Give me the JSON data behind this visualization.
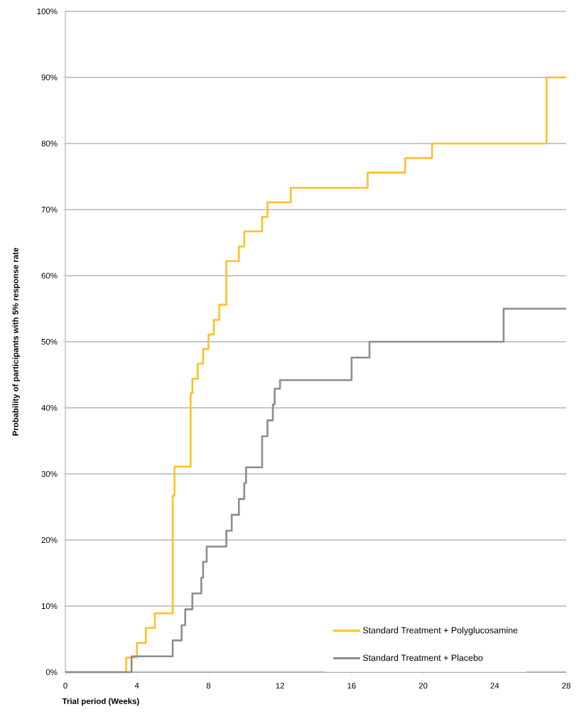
{
  "chart_data": {
    "type": "step",
    "xlabel": "Trial period (Weeks)",
    "ylabel": "Probability of participants with  5% response rate",
    "xlim": [
      0,
      28
    ],
    "xticks": [
      0,
      4,
      8,
      12,
      16,
      20,
      24,
      28
    ],
    "ylim": [
      0,
      100
    ],
    "yticks": [
      {
        "value": 0,
        "label": "0%"
      },
      {
        "value": 10,
        "label": "10%"
      },
      {
        "value": 20,
        "label": "20%"
      },
      {
        "value": 30,
        "label": "30%"
      },
      {
        "value": 40,
        "label": "40%"
      },
      {
        "value": 50,
        "label": "50%"
      },
      {
        "value": 60,
        "label": "60%"
      },
      {
        "value": 70,
        "label": "70%"
      },
      {
        "value": 80,
        "label": "80%"
      },
      {
        "value": 90,
        "label": "90%"
      },
      {
        "value": 100,
        "label": "100%"
      }
    ],
    "grid": "y",
    "legend": "bottom right",
    "marker": "none",
    "line_style": "solid",
    "series": [
      {
        "name": "Standard Treatment + Polyglucosamine",
        "color": "#ffc020",
        "x": [
          0,
          3.4,
          4.0,
          4.5,
          5.0,
          6.0,
          6.1,
          7.0,
          7.1,
          7.4,
          7.7,
          8.0,
          8.3,
          8.6,
          9.0,
          9.7,
          10.0,
          11.0,
          11.3,
          12.6,
          16.9,
          19.0,
          20.5,
          26.9,
          28
        ],
        "values": [
          0,
          2.2,
          4.4,
          6.7,
          8.9,
          26.7,
          31.1,
          42.2,
          44.4,
          46.7,
          48.9,
          51.1,
          53.3,
          55.6,
          62.2,
          64.4,
          66.7,
          68.9,
          71.1,
          73.3,
          75.6,
          77.8,
          80,
          90,
          90
        ]
      },
      {
        "name": "Standard Treatment + Placebo",
        "color": "#8c8c91",
        "x": [
          0,
          3.7,
          6.0,
          6.5,
          6.7,
          7.1,
          7.6,
          7.7,
          7.9,
          9.0,
          9.3,
          9.7,
          10.0,
          10.1,
          11.0,
          11.3,
          11.6,
          11.7,
          12.0,
          16.0,
          17.0,
          24.5,
          28
        ],
        "values": [
          0,
          2.4,
          4.8,
          7.1,
          9.5,
          11.9,
          14.3,
          16.7,
          19.0,
          21.4,
          23.8,
          26.2,
          28.6,
          31.0,
          35.7,
          38.1,
          40.5,
          42.9,
          44.2,
          47.6,
          50,
          55,
          55
        ]
      }
    ]
  }
}
